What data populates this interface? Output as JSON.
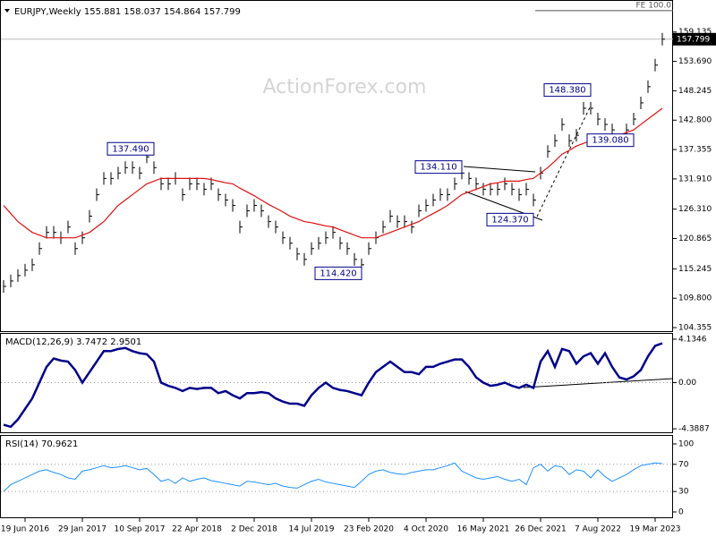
{
  "chart_data": [
    {
      "type": "ohlc",
      "title": "EURJPY,Weekly  155.881 158.037 154.864 157.799",
      "watermark": "ActionForex.com",
      "ylim": [
        103.7,
        164.4
      ],
      "yticks": [
        159.135,
        {
          "value": 153.69,
          "label": "153.690"
        },
        148.245,
        {
          "value": 142.8,
          "label": "142.800"
        },
        137.355,
        {
          "value": 131.91,
          "label": "131.910"
        },
        {
          "value": 126.31,
          "label": "126.310"
        },
        120.865,
        115.245,
        {
          "value": 109.8,
          "label": "109.800"
        },
        104.355
      ],
      "last": 157.799,
      "fe": {
        "label": "FE 100.0",
        "value": 163.1
      },
      "series": [
        {
          "draw": "bars",
          "color": "#000000",
          "values": [
            112,
            113,
            114,
            115,
            116,
            119,
            122,
            122,
            121,
            123,
            119,
            121,
            125,
            129,
            132,
            132,
            133,
            134,
            134,
            133,
            136,
            134,
            131,
            131,
            132,
            129,
            131,
            131,
            130,
            131,
            129,
            128,
            127,
            123,
            126,
            127,
            126,
            124,
            123,
            121,
            120,
            118,
            117,
            119,
            120,
            121,
            122,
            120,
            119,
            117,
            116,
            119,
            121,
            123,
            125,
            124,
            124,
            123,
            126,
            127,
            128,
            129,
            129,
            131,
            133,
            132,
            131,
            130,
            130,
            130,
            131,
            130,
            129,
            130,
            128,
            133,
            137,
            139,
            142,
            139,
            140,
            145,
            145,
            143,
            142,
            141,
            139,
            141,
            143,
            146,
            149,
            153,
            157.799
          ]
        },
        {
          "draw": "line",
          "color": "#e01010",
          "values": [
            127,
            125.5,
            124,
            123,
            122,
            121.5,
            121,
            121,
            121,
            121,
            121,
            121.5,
            122,
            123,
            124,
            125.5,
            127,
            128,
            129,
            130,
            131,
            131.5,
            132,
            132,
            132,
            132,
            132,
            132,
            132,
            131.8,
            131.5,
            131.2,
            131,
            130.2,
            129.5,
            128.8,
            128,
            127.2,
            126.5,
            125.8,
            125,
            124.5,
            124,
            123.8,
            123.5,
            123.2,
            123,
            122.5,
            122,
            121.5,
            121,
            121,
            121,
            121.5,
            122,
            122.5,
            123,
            123.5,
            124,
            124.8,
            125.5,
            126.2,
            127,
            128,
            129,
            129.5,
            130,
            130.5,
            131,
            131.2,
            131.5,
            131.5,
            131.5,
            131.8,
            132,
            133,
            134,
            135.2,
            136.5,
            137.2,
            138,
            138.5,
            139,
            139.2,
            139.5,
            139.8,
            140,
            140.5,
            141,
            142,
            143,
            144,
            145
          ]
        }
      ],
      "annotations": [
        {
          "label": "137.490",
          "value": 137.49,
          "index": 21
        },
        {
          "label": "114.420",
          "value": 114.42,
          "index": 50
        },
        {
          "label": "134.110",
          "value": 134.11,
          "index": 64
        },
        {
          "label": "124.370",
          "value": 124.37,
          "index": 74
        },
        {
          "label": "148.380",
          "value": 148.38,
          "index": 82
        },
        {
          "label": "139.080",
          "value": 139.08,
          "index": 88
        }
      ]
    },
    {
      "type": "line",
      "title": "MACD(12,26,9) 3.7472 2.9501",
      "ylim": [
        -4.72,
        4.64
      ],
      "yticks": [
        4.1346,
        {
          "value": 0,
          "label": "0.00"
        },
        -4.3887
      ],
      "levels": [
        0
      ],
      "series": [
        {
          "draw": "line",
          "color": "#00008b",
          "values": [
            -4,
            -4.2,
            -3.5,
            -2.5,
            -1.5,
            0,
            1.5,
            2.3,
            2.1,
            2,
            1.2,
            0,
            1,
            2,
            3,
            3,
            3.2,
            3.3,
            3,
            2.8,
            2.7,
            2,
            0,
            -0.3,
            -0.5,
            -0.8,
            -0.5,
            -0.6,
            -0.5,
            -0.5,
            -1,
            -0.8,
            -1.2,
            -1.5,
            -1,
            -1,
            -0.9,
            -1,
            -1.5,
            -1.8,
            -2,
            -2,
            -2.2,
            -1.2,
            -0.5,
            0,
            -0.5,
            -0.7,
            -0.8,
            -1,
            -1.2,
            0,
            1,
            1.5,
            2,
            1.5,
            1,
            1,
            0.8,
            1.5,
            1.5,
            1.8,
            2,
            2.2,
            2.2,
            1.5,
            0.5,
            0,
            -0.3,
            -0.2,
            0,
            -0.3,
            -0.5,
            -0.2,
            -0.5,
            2,
            3,
            1.5,
            3.2,
            3,
            1.8,
            2.5,
            2.8,
            1.8,
            2.8,
            1.5,
            0.5,
            0.3,
            0.6,
            1.2,
            2.5,
            3.5,
            3.7472
          ]
        }
      ]
    },
    {
      "type": "line",
      "title": "RSI(14) 70.9621",
      "ylim": [
        -7.9,
        111.8
      ],
      "yticks": [
        100,
        70,
        30,
        0
      ],
      "levels": [
        70,
        30
      ],
      "series": [
        {
          "draw": "line",
          "color": "#1e90ff",
          "values": [
            30,
            40,
            45,
            50,
            55,
            60,
            62,
            58,
            55,
            50,
            48,
            60,
            62,
            65,
            68,
            65,
            66,
            68,
            65,
            62,
            64,
            55,
            45,
            48,
            42,
            50,
            45,
            48,
            50,
            46,
            44,
            42,
            40,
            38,
            45,
            44,
            42,
            40,
            42,
            38,
            36,
            35,
            40,
            45,
            48,
            44,
            42,
            40,
            38,
            36,
            45,
            55,
            60,
            62,
            58,
            56,
            55,
            58,
            60,
            62,
            62,
            65,
            68,
            72,
            60,
            55,
            50,
            48,
            50,
            52,
            48,
            45,
            48,
            40,
            65,
            70,
            60,
            68,
            66,
            55,
            62,
            60,
            50,
            62,
            52,
            45,
            50,
            55,
            62,
            68,
            70,
            72,
            70.9621
          ]
        }
      ],
      "categories": [
        null,
        null,
        null,
        "19 Jun 2016",
        null,
        null,
        null,
        null,
        null,
        null,
        null,
        "29 Jan 2017",
        null,
        null,
        null,
        null,
        null,
        null,
        null,
        "10 Sep 2017",
        null,
        null,
        null,
        null,
        null,
        null,
        null,
        "22 Apr 2018",
        null,
        null,
        null,
        null,
        null,
        null,
        null,
        "2 Dec 2018",
        null,
        null,
        null,
        null,
        null,
        null,
        null,
        "14 Jul 2019",
        null,
        null,
        null,
        null,
        null,
        null,
        null,
        "23 Feb 2020",
        null,
        null,
        null,
        null,
        null,
        null,
        null,
        "4 Oct 2020",
        null,
        null,
        null,
        null,
        null,
        null,
        null,
        "16 May 2021",
        null,
        null,
        null,
        null,
        null,
        null,
        null,
        "26 Dec 2021",
        null,
        null,
        null,
        null,
        null,
        null,
        null,
        "7 Aug 2022",
        null,
        null,
        null,
        null,
        null,
        null,
        null,
        "19 Mar 2023",
        null
      ]
    }
  ]
}
